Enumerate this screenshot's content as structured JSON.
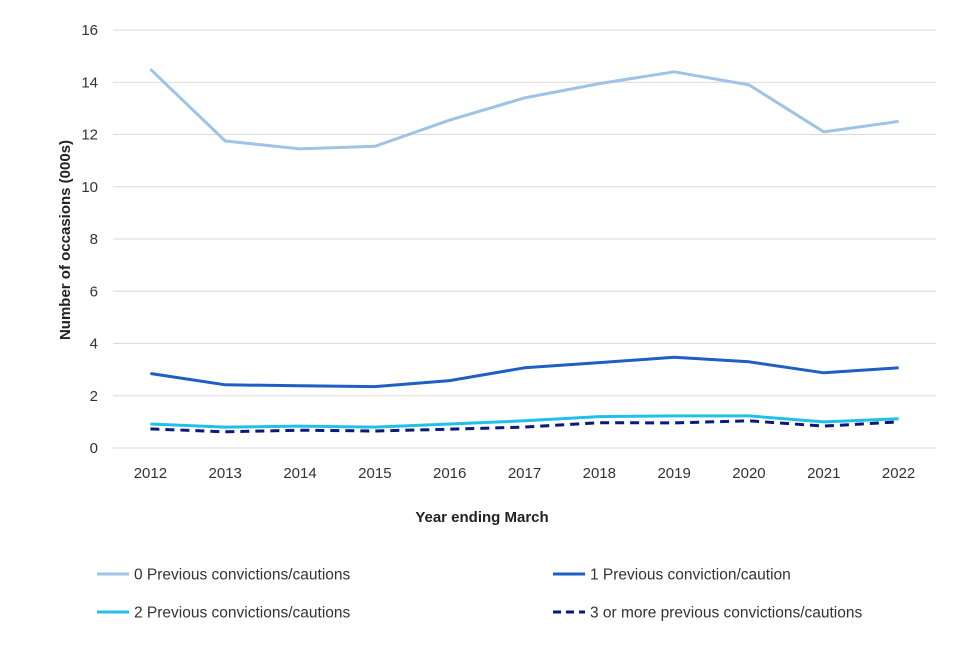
{
  "chart_data": {
    "type": "line",
    "title": "",
    "xlabel": "Year ending March",
    "ylabel": "Number of occasions (000s)",
    "ylim": [
      0,
      16
    ],
    "yticks": [
      0,
      2,
      4,
      6,
      8,
      10,
      12,
      14,
      16
    ],
    "grid": true,
    "legend_position": "bottom",
    "categories": [
      "2012",
      "2013",
      "2014",
      "2015",
      "2016",
      "2017",
      "2018",
      "2019",
      "2020",
      "2021",
      "2022"
    ],
    "series": [
      {
        "name": "0 Previous convictions/cautions",
        "color": "#9dc3e6",
        "dashed": false,
        "values": [
          14.5,
          11.75,
          11.45,
          11.55,
          12.55,
          13.4,
          13.95,
          14.4,
          13.9,
          12.1,
          12.5
        ]
      },
      {
        "name": "1 Previous conviction/caution",
        "color": "#1f5fc4",
        "dashed": false,
        "values": [
          2.85,
          2.42,
          2.38,
          2.35,
          2.58,
          3.07,
          3.27,
          3.47,
          3.3,
          2.88,
          3.07
        ]
      },
      {
        "name": "2 Previous convictions/cautions",
        "color": "#1fc1e8",
        "dashed": false,
        "values": [
          0.92,
          0.8,
          0.84,
          0.8,
          0.92,
          1.04,
          1.2,
          1.23,
          1.23,
          1.0,
          1.12
        ]
      },
      {
        "name": "3 or more previous convictions/cautions",
        "color": "#0a1a7a",
        "dashed": true,
        "values": [
          0.73,
          0.62,
          0.68,
          0.65,
          0.72,
          0.8,
          0.97,
          0.96,
          1.04,
          0.84,
          1.0
        ]
      }
    ]
  }
}
